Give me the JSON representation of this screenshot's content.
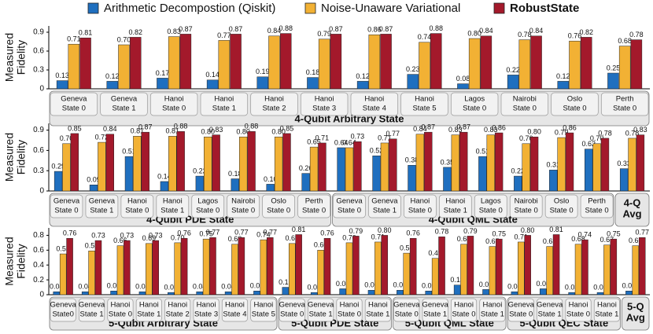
{
  "legend": {
    "series": [
      {
        "name": "Arithmetic Decompostion (Qiskit)",
        "color": "#1f6fbf"
      },
      {
        "name": "Noise-Unaware Variational",
        "color": "#f2b134"
      },
      {
        "name": "RobustState",
        "color": "#a3192b"
      }
    ]
  },
  "chart_data": [
    {
      "type": "bar",
      "ylabel": [
        "Measured",
        "Fidelity"
      ],
      "ylim": [
        0,
        1.0
      ],
      "yticks": [
        0,
        0.3,
        0.6,
        0.9
      ],
      "groups": [
        {
          "label": "4-Qubit Arbitrary State",
          "categories": [
            [
              "Geneva",
              "State 0"
            ],
            [
              "Geneva",
              "State 1"
            ],
            [
              "Hanoi",
              "State 0"
            ],
            [
              "Hanoi",
              "State 1"
            ],
            [
              "Hanoi",
              "State 2"
            ],
            [
              "Hanoi",
              "State 3"
            ],
            [
              "Hanoi",
              "State 4"
            ],
            [
              "Hanoi",
              "State 5"
            ],
            [
              "Lagos",
              "State 0"
            ],
            [
              "Nairobi",
              "State 0"
            ],
            [
              "Oslo",
              "State 0"
            ],
            [
              "Perth",
              "State 0"
            ]
          ],
          "values": [
            [
              0.13,
              0.12,
              0.17,
              0.14,
              0.19,
              0.18,
              0.12,
              0.23,
              0.08,
              0.22,
              0.12,
              0.25
            ],
            [
              0.71,
              0.7,
              0.83,
              0.77,
              0.84,
              0.79,
              0.86,
              0.74,
              0.8,
              0.78,
              0.76,
              0.68
            ],
            [
              0.81,
              0.82,
              0.87,
              0.87,
              0.88,
              0.87,
              0.87,
              0.88,
              0.84,
              0.84,
              0.82,
              0.78
            ]
          ],
          "value_labels": [
            [
              "0.13",
              "0.12",
              "0.17",
              "0.14",
              "0.19",
              "0.18",
              "0.12",
              "0.23",
              "0.08",
              "0.22",
              "0.12",
              "0.25"
            ],
            [
              "0.71",
              "0.70",
              "0.83",
              "0.77",
              "0.84",
              "0.79",
              "0.86",
              "0.74",
              "0.80",
              "0.78",
              "0.76",
              "0.68"
            ],
            [
              "0.81",
              "0.82",
              "0.87",
              "0.87",
              "0.88",
              "0.87",
              "0.87",
              "0.88",
              "0.84",
              "0.84",
              "0.82",
              "0.78"
            ]
          ]
        }
      ]
    },
    {
      "type": "bar",
      "ylabel": [
        "Measured",
        "Fidelity"
      ],
      "ylim": [
        0,
        1.0
      ],
      "yticks": [
        0,
        0.3,
        0.6,
        0.9
      ],
      "groups": [
        {
          "label": "4-Qubit PDE State",
          "categories": [
            [
              "Geneva",
              "State 0"
            ],
            [
              "Geneva",
              "State 1"
            ],
            [
              "Hanoi",
              "State 0"
            ],
            [
              "Hanoi",
              "State 1"
            ],
            [
              "Lagos",
              "State 0"
            ],
            [
              "Nairobi",
              "State 0"
            ],
            [
              "Oslo",
              "State 0"
            ],
            [
              "Perth",
              "State 0"
            ]
          ],
          "values": [
            [
              0.29,
              0.09,
              0.51,
              0.14,
              0.22,
              0.18,
              0.1,
              0.26
            ],
            [
              0.7,
              0.72,
              0.81,
              0.81,
              0.8,
              0.8,
              0.8,
              0.65
            ],
            [
              0.85,
              0.84,
              0.87,
              0.88,
              0.83,
              0.88,
              0.85,
              0.71
            ]
          ],
          "value_labels": [
            [
              "0.29",
              "0.09",
              "0.51",
              "0.14",
              "0.22",
              "0.18",
              "0.10",
              "0.26"
            ],
            [
              "0.70",
              "0.72",
              "0.81",
              "0.81",
              "0.80",
              "0.80",
              "0.80",
              "0.65"
            ],
            [
              "0.85",
              "0.84",
              "0.87",
              "0.88",
              "0.83",
              "0.88",
              "0.85",
              "0.71"
            ]
          ]
        },
        {
          "label": "4-Qubit QML State",
          "categories": [
            [
              "Geneva",
              "State 0"
            ],
            [
              "Geneva",
              "State 1"
            ],
            [
              "Hanoi",
              "State 0"
            ],
            [
              "Hanoi",
              "State 1"
            ],
            [
              "Lagos",
              "State 0"
            ],
            [
              "Nairobi",
              "State 0"
            ],
            [
              "Oslo",
              "State 0"
            ],
            [
              "Perth",
              "State 0"
            ]
          ],
          "values": [
            [
              0.64,
              0.52,
              0.38,
              0.35,
              0.51,
              0.22,
              0.31,
              0.62
            ],
            [
              0.64,
              0.71,
              0.84,
              0.83,
              0.83,
              0.7,
              0.79,
              0.7
            ],
            [
              0.73,
              0.77,
              0.87,
              0.87,
              0.86,
              0.8,
              0.86,
              0.78
            ]
          ],
          "value_labels": [
            [
              "0.64",
              "0.52",
              "0.38",
              "0.35",
              "0.51",
              "0.22",
              "0.31",
              "0.62"
            ],
            [
              "0.64",
              "0.71",
              "0.84",
              "0.83",
              "0.83",
              "0.70",
              "0.79",
              "0.70"
            ],
            [
              "0.73",
              "0.77",
              "0.87",
              "0.87",
              "0.86",
              "0.80",
              "0.86",
              "0.78"
            ]
          ]
        },
        {
          "label": [
            "4-Q",
            "Avg"
          ],
          "categories": [
            null
          ],
          "values": [
            [
              0.33
            ],
            [
              0.78
            ],
            [
              0.83
            ]
          ],
          "value_labels": [
            [
              "0.33"
            ],
            [
              "0.78"
            ],
            [
              "0.83"
            ]
          ]
        }
      ]
    },
    {
      "type": "bar",
      "ylabel": [
        "Measured",
        "Fidelity"
      ],
      "ylim": [
        0,
        0.9
      ],
      "yticks": [
        0,
        0.2,
        0.4,
        0.6,
        0.8
      ],
      "groups": [
        {
          "label": "5-Qubit Arbitrary State",
          "categories": [
            [
              "Geneva",
              "State0"
            ],
            [
              "Geneva",
              "State 1"
            ],
            [
              "Hanoi",
              "State 0"
            ],
            [
              "Hanoi",
              "State 1"
            ],
            [
              "Hanoi",
              "State 2"
            ],
            [
              "Hanoi",
              "State 3"
            ],
            [
              "Hanoi",
              "State 4"
            ],
            [
              "Hanoi",
              "State 5"
            ]
          ],
          "values": [
            [
              0.04,
              0.04,
              0.05,
              0.04,
              0.03,
              0.04,
              0.04,
              0.05
            ],
            [
              0.55,
              0.59,
              0.66,
              0.69,
              0.7,
              0.75,
              0.68,
              0.74
            ],
            [
              0.76,
              0.73,
              0.73,
              0.73,
              0.76,
              0.77,
              0.77,
              0.77
            ]
          ],
          "value_labels": [
            [
              "0.04",
              "0.04",
              "0.05",
              "0.04",
              "0.03",
              "0.04",
              "0.04",
              "0.05"
            ],
            [
              "0.55",
              "0.59",
              "0.66",
              "0.69",
              "0.70",
              "0.75",
              "0.68",
              "0.74"
            ],
            [
              "0.76",
              "0.73",
              "0.73",
              "0.73",
              "0.76",
              "0.77",
              "0.77",
              "0.77"
            ]
          ]
        },
        {
          "label": "5-Qubit PDE State",
          "categories": [
            [
              "Geneva",
              "State 0"
            ],
            [
              "Geneva",
              "State 1"
            ],
            [
              "Hanoi",
              "State 0"
            ],
            [
              "Hanoi",
              "State 1"
            ]
          ],
          "values": [
            [
              0.1,
              0.03,
              0.08,
              0.06
            ],
            [
              0.69,
              0.6,
              0.7,
              0.71
            ],
            [
              0.81,
              0.76,
              0.79,
              0.8
            ]
          ],
          "value_labels": [
            [
              "0.10",
              "0.03",
              "0.08",
              "0.06"
            ],
            [
              "0.69",
              "0.60",
              "0.70",
              "0.71"
            ],
            [
              "0.81",
              "0.76",
              "0.79",
              "0.80"
            ]
          ]
        },
        {
          "label": "5-Qubit QML State",
          "categories": [
            [
              "Geneva",
              "State 0"
            ],
            [
              "Geneva",
              "State 1"
            ],
            [
              "Hanoi",
              "State 0"
            ],
            [
              "Hanoi",
              "State 1"
            ]
          ],
          "values": [
            [
              0.06,
              0.05,
              0.13,
              0.07
            ],
            [
              0.56,
              0.49,
              0.68,
              0.65
            ],
            [
              0.76,
              0.78,
              0.79,
              0.75
            ]
          ],
          "value_labels": [
            [
              "0.06",
              "0.05",
              "0.13",
              "0.07"
            ],
            [
              "0.56",
              "0.49",
              "0.68",
              "0.65"
            ],
            [
              "0.76",
              "0.78",
              "0.79",
              "0.75"
            ]
          ]
        },
        {
          "label": "5-Qubit QEC State",
          "categories": [
            [
              "Geneva",
              "State 0"
            ],
            [
              "Geneva",
              "State 1"
            ],
            [
              "Hanoi",
              "State 0"
            ],
            [
              "Hanoi",
              "State 1"
            ]
          ],
          "values": [
            [
              0.04,
              0.08,
              0.03,
              0.03
            ],
            [
              0.71,
              0.65,
              0.68,
              0.67
            ],
            [
              0.8,
              0.81,
              0.74,
              0.75
            ]
          ],
          "value_labels": [
            [
              "0.04",
              "0.08",
              "0.03",
              "0.03"
            ],
            [
              "0.71",
              "0.65",
              "0.68",
              "0.67"
            ],
            [
              "0.80",
              "0.81",
              "0.74",
              "0.75"
            ]
          ]
        },
        {
          "label": [
            "5-Q",
            "Avg"
          ],
          "categories": [
            null
          ],
          "values": [
            [
              0.05
            ],
            [
              0.66
            ],
            [
              0.77
            ]
          ],
          "value_labels": [
            [
              "0.05"
            ],
            [
              "0.66"
            ],
            [
              "0.77"
            ]
          ]
        }
      ]
    }
  ]
}
